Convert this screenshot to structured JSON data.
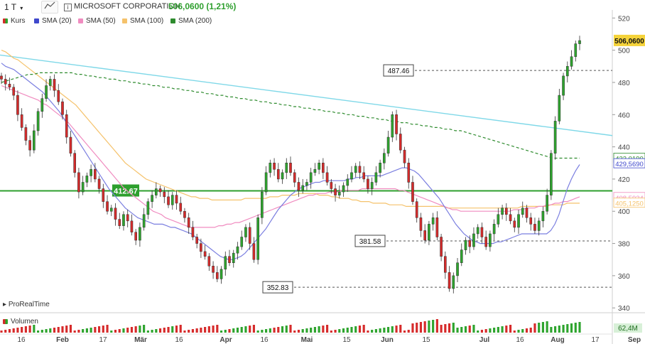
{
  "toolbar": {
    "timeframe": "1 T",
    "caret": "▾",
    "chart_type_icon": "candlestick-chart-icon",
    "info_icon": "info-icon",
    "info_glyph": "i",
    "symbol": "MICROSOFT CORPORATION",
    "price": "506,0600 (1,21%)"
  },
  "legend": [
    {
      "label": "Kurs",
      "color": "split-red-green"
    },
    {
      "label": "SMA (20)",
      "color": "#3f48cc"
    },
    {
      "label": "SMA (50)",
      "color": "#f08cc0"
    },
    {
      "label": "SMA (100)",
      "color": "#f5c26b"
    },
    {
      "label": "SMA (200)",
      "color": "#2e8b2e"
    }
  ],
  "watermark": "ProRealTime",
  "volume_label": "Volumen",
  "colors": {
    "up": "#2ea42e",
    "down": "#d62b2b",
    "sma20": "#7b7fe0",
    "sma50": "#f08cc0",
    "sma100": "#f5c26b",
    "sma200": "#2e8b2e",
    "trendline": "#7fd8e8",
    "level": "#2e9f2e",
    "price_tag": "#f5d33a"
  },
  "chart_data": {
    "type": "candlestick",
    "title": "MICROSOFT CORPORATION",
    "y_axis": {
      "ticks": [
        340,
        360,
        380,
        400,
        420,
        440,
        460,
        480,
        500,
        520
      ],
      "range": [
        337,
        525
      ]
    },
    "x_axis": {
      "labels": [
        "16",
        "Feb",
        "17",
        "Mär",
        "16",
        "Apr",
        "16",
        "Mai",
        "15",
        "Jun",
        "15",
        "Jul",
        "16",
        "Aug",
        "17",
        "Sep"
      ]
    },
    "last_price_label": "506,0600",
    "right_axis_labels": [
      {
        "text": "433,0190",
        "value": 433.0,
        "color": "#2e8b2e"
      },
      {
        "text": "429,5690",
        "value": 429.6,
        "color": "#3f48cc"
      },
      {
        "text": "408,5934",
        "value": 408.6,
        "color": "#f08cc0"
      },
      {
        "text": "405,1250",
        "value": 405.1,
        "color": "#f5c26b"
      }
    ],
    "horizontal_level": {
      "label": "412.67",
      "value": 412.67
    },
    "dashed_levels": [
      {
        "label": "487.46",
        "value": 487.46
      },
      {
        "label": "381.58",
        "value": 381.58
      },
      {
        "label": "352.83",
        "value": 352.83
      }
    ],
    "trendline": {
      "start": 497,
      "end": 447
    },
    "closes": [
      482,
      479,
      477,
      472,
      460,
      452,
      444,
      438,
      450,
      462,
      470,
      478,
      482,
      475,
      468,
      460,
      446,
      436,
      424,
      412,
      418,
      422,
      426,
      420,
      414,
      406,
      400,
      402,
      395,
      391,
      398,
      394,
      387,
      382,
      390,
      398,
      406,
      410,
      414,
      412,
      409,
      404,
      410,
      405,
      400,
      396,
      390,
      384,
      380,
      375,
      372,
      366,
      362,
      358,
      364,
      372,
      368,
      374,
      378,
      384,
      390,
      380,
      370,
      396,
      412,
      424,
      430,
      426,
      420,
      424,
      430,
      424,
      418,
      413,
      416,
      418,
      424,
      426,
      430,
      424,
      418,
      414,
      410,
      412,
      416,
      420,
      424,
      428,
      424,
      420,
      414,
      418,
      424,
      430,
      436,
      446,
      460,
      448,
      438,
      430,
      418,
      406,
      396,
      388,
      382,
      392,
      396,
      384,
      372,
      362,
      352,
      360,
      368,
      376,
      382,
      378,
      386,
      390,
      384,
      378,
      386,
      392,
      398,
      402,
      398,
      394,
      390,
      398,
      402,
      396,
      392,
      388,
      394,
      400,
      410,
      436,
      456,
      472,
      484,
      490,
      496,
      504,
      506
    ],
    "sma20": [
      492,
      490,
      489,
      488,
      486,
      484,
      482,
      480,
      478,
      476,
      474,
      471,
      468,
      465,
      462,
      458,
      454,
      450,
      446,
      442,
      438,
      434,
      430,
      426,
      422,
      418,
      414,
      411,
      408,
      405,
      402,
      400,
      398,
      396,
      395,
      394,
      393,
      392,
      392,
      392,
      391,
      390,
      390,
      389,
      388,
      387,
      386,
      384,
      382,
      380,
      378,
      376,
      374,
      372,
      371,
      370,
      370,
      371,
      372,
      374,
      377,
      380,
      383,
      386,
      389,
      393,
      397,
      401,
      404,
      407,
      410,
      412,
      414,
      415,
      416,
      417,
      418,
      418,
      419,
      419,
      419,
      419,
      419,
      419,
      420,
      420,
      421,
      421,
      422,
      422,
      422,
      422,
      422,
      423,
      424,
      425,
      426,
      427,
      427,
      426,
      425,
      423,
      420,
      417,
      414,
      411,
      408,
      404,
      400,
      396,
      392,
      389,
      386,
      384,
      382,
      381,
      380,
      380,
      380,
      380,
      381,
      381,
      382,
      383,
      384,
      385,
      386,
      386,
      386,
      386,
      386,
      386,
      386,
      388,
      392,
      398,
      406,
      414,
      420,
      425,
      429
    ],
    "sma50": [
      478,
      477,
      476,
      475,
      474,
      473,
      472,
      471,
      470,
      469,
      467,
      466,
      464,
      462,
      460,
      458,
      456,
      453,
      450,
      447,
      444,
      441,
      438,
      435,
      432,
      429,
      426,
      423,
      420,
      417,
      414,
      412,
      410,
      408,
      406,
      404,
      402,
      400,
      399,
      398,
      396,
      395,
      394,
      393,
      392,
      391,
      390,
      390,
      390,
      390,
      390,
      390,
      390,
      391,
      391,
      392,
      392,
      393,
      393,
      394,
      395,
      396,
      397,
      398,
      399,
      400,
      401,
      402,
      403,
      404,
      405,
      406,
      407,
      408,
      409,
      410,
      410,
      411,
      411,
      411,
      412,
      412,
      412,
      413,
      413,
      413,
      413,
      413,
      414,
      414,
      414,
      414,
      414,
      414,
      414,
      414,
      414,
      413,
      413,
      412,
      411,
      410,
      409,
      408,
      407,
      406,
      405,
      404,
      403,
      402,
      401,
      401,
      400,
      400,
      400,
      400,
      400,
      400,
      400,
      400,
      400,
      400,
      400,
      400,
      400,
      401,
      401,
      401,
      402,
      402,
      402,
      403,
      403,
      404,
      404,
      405,
      405,
      406,
      406,
      407,
      408,
      409
    ],
    "sma100": [
      500,
      499,
      497,
      495,
      494,
      492,
      490,
      488,
      486,
      484,
      482,
      480,
      478,
      476,
      474,
      472,
      470,
      468,
      466,
      463,
      460,
      457,
      454,
      451,
      448,
      445,
      442,
      439,
      436,
      433,
      430,
      428,
      426,
      424,
      422,
      420,
      419,
      418,
      417,
      416,
      415,
      414,
      413,
      412,
      411,
      410,
      409,
      409,
      408,
      408,
      408,
      407,
      407,
      407,
      407,
      407,
      407,
      407,
      407,
      408,
      408,
      408,
      408,
      408,
      408,
      409,
      409,
      409,
      410,
      410,
      410,
      410,
      411,
      411,
      411,
      411,
      411,
      410,
      410,
      410,
      409,
      409,
      408,
      408,
      408,
      407,
      407,
      406,
      406,
      406,
      405,
      405,
      405,
      405,
      404,
      404,
      404,
      404,
      403,
      403,
      403,
      403,
      403,
      403,
      403,
      403,
      403,
      403,
      402,
      402,
      402,
      402,
      402,
      402,
      402,
      402,
      402,
      402,
      402,
      402,
      402,
      402,
      402,
      402,
      402,
      402,
      403,
      403,
      403,
      403,
      403,
      403,
      403,
      404,
      404,
      404,
      404,
      405,
      405,
      405,
      405
    ],
    "sma200": [
      480,
      481,
      482,
      483,
      484,
      485,
      485,
      486,
      486,
      486,
      486,
      486,
      486,
      486,
      485,
      485,
      484,
      484,
      483,
      483,
      482,
      482,
      481,
      481,
      480,
      480,
      479,
      479,
      478,
      478,
      477,
      477,
      476,
      476,
      475,
      475,
      474,
      474,
      473,
      473,
      472,
      472,
      471,
      471,
      470,
      470,
      469,
      469,
      468,
      468,
      467,
      467,
      466,
      466,
      465,
      465,
      464,
      464,
      463,
      463,
      462,
      462,
      461,
      461,
      460,
      460,
      459,
      459,
      458,
      458,
      457,
      457,
      456,
      456,
      455,
      455,
      454,
      454,
      453,
      453,
      452,
      452,
      451,
      451,
      450,
      450,
      449,
      448,
      447,
      446,
      445,
      444,
      443,
      442,
      441,
      440,
      439,
      438,
      437,
      436,
      435,
      434,
      433,
      433,
      433,
      433,
      433,
      433
    ]
  }
}
